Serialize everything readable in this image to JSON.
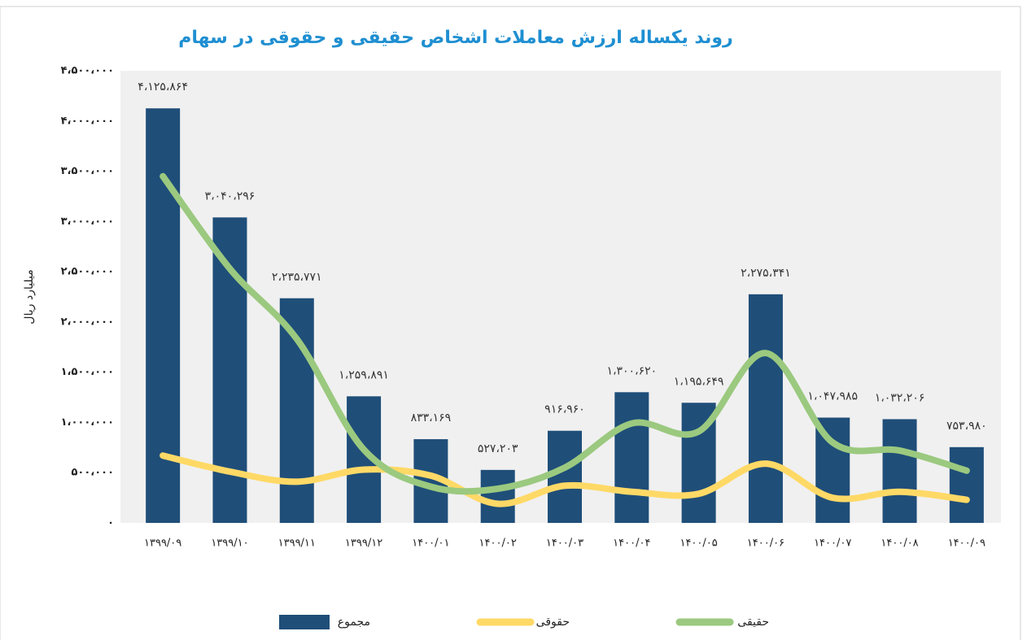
{
  "chart_data": {
    "type": "bar",
    "title": "روند یکساله ارزش معاملات اشخاص حقیقی و حقوقی در سهام",
    "y_label": "میلیارد ریال",
    "categories": [
      "۱۳۹۹/۰۹",
      "۱۳۹۹/۱۰",
      "۱۳۹۹/۱۱",
      "۱۳۹۹/۱۲",
      "۱۴۰۰/۰۱",
      "۱۴۰۰/۰۲",
      "۱۴۰۰/۰۳",
      "۱۴۰۰/۰۴",
      "۱۴۰۰/۰۵",
      "۱۴۰۰/۰۶",
      "۱۴۰۰/۰۷",
      "۱۴۰۰/۰۸",
      "۱۴۰۰/۰۹"
    ],
    "series": [
      {
        "name": "مجموع",
        "type": "bar",
        "color": "#1f4e79",
        "values": [
          4125864,
          3040296,
          2235771,
          1259891,
          833169,
          527203,
          916960,
          1300620,
          1195649,
          2275341,
          1047985,
          1032206,
          753980
        ],
        "value_labels": [
          "۴،۱۲۵،۸۶۴",
          "۳،۰۴۰،۲۹۶",
          "۲،۲۳۵،۷۷۱",
          "۱،۲۵۹،۸۹۱",
          "۸۳۳،۱۶۹",
          "۵۲۷،۲۰۳",
          "۹۱۶،۹۶۰",
          "۱،۳۰۰،۶۲۰",
          "۱،۱۹۵،۶۴۹",
          "۲،۲۷۵،۳۴۱",
          "۱،۰۴۷،۹۸۵",
          "۱،۰۳۲،۲۰۶",
          "۷۵۳،۹۸۰"
        ]
      },
      {
        "name": "حقوقی",
        "type": "line",
        "color": "#ffd966",
        "values": [
          670000,
          510000,
          410000,
          530000,
          470000,
          190000,
          370000,
          310000,
          290000,
          590000,
          250000,
          310000,
          230000
        ]
      },
      {
        "name": "حقیقی",
        "type": "line",
        "color": "#9bc97f",
        "values": [
          3450000,
          2530000,
          1830000,
          730000,
          360000,
          340000,
          550000,
          990000,
          910000,
          1690000,
          800000,
          720000,
          520000
        ]
      }
    ],
    "ylim": [
      0,
      4500000
    ],
    "yticks": [
      {
        "value": 0,
        "label": "۰"
      },
      {
        "value": 500000,
        "label": "۵۰۰،۰۰۰"
      },
      {
        "value": 1000000,
        "label": "۱،۰۰۰،۰۰۰"
      },
      {
        "value": 1500000,
        "label": "۱،۵۰۰،۰۰۰"
      },
      {
        "value": 2000000,
        "label": "۲،۰۰۰،۰۰۰"
      },
      {
        "value": 2500000,
        "label": "۲،۵۰۰،۰۰۰"
      },
      {
        "value": 3000000,
        "label": "۳،۰۰۰،۰۰۰"
      },
      {
        "value": 3500000,
        "label": "۳،۵۰۰،۰۰۰"
      },
      {
        "value": 4000000,
        "label": "۴،۰۰۰،۰۰۰"
      },
      {
        "value": 4500000,
        "label": "۴،۵۰۰،۰۰۰"
      }
    ],
    "grid": false
  }
}
